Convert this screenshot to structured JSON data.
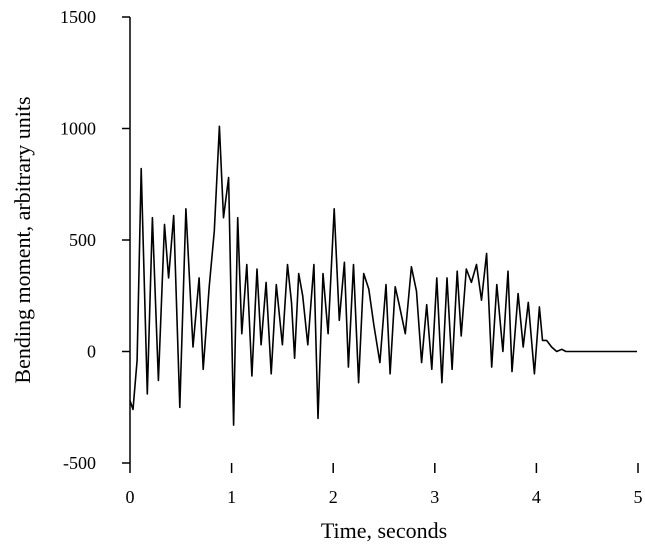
{
  "chart_data": {
    "type": "line",
    "title": "",
    "xlabel": "Time, seconds",
    "ylabel": "Bending moment, arbitrary units",
    "xlim": [
      0,
      5
    ],
    "ylim": [
      -500,
      1500
    ],
    "x_ticks": [
      0,
      1,
      2,
      3,
      4,
      5
    ],
    "x_tick_labels": [
      "0",
      "1",
      "2",
      "3",
      "4",
      "5"
    ],
    "y_ticks": [
      -500,
      0,
      500,
      1000,
      1500
    ],
    "y_tick_labels": [
      "-500",
      "0",
      "500",
      "1000",
      "1500"
    ],
    "grid": false,
    "legend": "none",
    "series": [
      {
        "x": [
          0,
          0.03,
          0.07,
          0.11,
          0.17,
          0.22,
          0.28,
          0.34,
          0.38,
          0.43,
          0.49,
          0.55,
          0.62,
          0.68,
          0.72,
          0.78,
          0.83,
          0.88,
          0.92,
          0.97,
          1.02,
          1.06,
          1.1,
          1.15,
          1.2,
          1.25,
          1.29,
          1.34,
          1.39,
          1.44,
          1.5,
          1.55,
          1.59,
          1.62,
          1.66,
          1.7,
          1.75,
          1.81,
          1.85,
          1.9,
          1.95,
          2.01,
          2.06,
          2.11,
          2.15,
          2.2,
          2.25,
          2.3,
          2.35,
          2.4,
          2.46,
          2.52,
          2.56,
          2.61,
          2.65,
          2.71,
          2.77,
          2.82,
          2.87,
          2.92,
          2.97,
          3.02,
          3.07,
          3.12,
          3.17,
          3.22,
          3.26,
          3.31,
          3.36,
          3.41,
          3.46,
          3.51,
          3.56,
          3.61,
          3.67,
          3.72,
          3.76,
          3.82,
          3.87,
          3.92,
          3.98,
          4.03,
          4.06,
          4.1,
          4.15,
          4.2,
          4.25,
          4.29,
          4.34,
          4.39,
          4.44,
          4.49,
          4.54,
          4.59,
          4.64,
          4.69,
          4.74,
          4.79,
          4.84,
          4.89,
          4.94,
          4.99
        ],
        "values": [
          -220,
          -260,
          -40,
          820,
          -190,
          600,
          -130,
          570,
          330,
          610,
          -250,
          640,
          20,
          330,
          -80,
          290,
          540,
          1010,
          600,
          780,
          -330,
          600,
          80,
          390,
          -110,
          370,
          30,
          310,
          -100,
          300,
          30,
          390,
          220,
          -30,
          350,
          250,
          30,
          390,
          -300,
          350,
          80,
          640,
          140,
          400,
          -70,
          390,
          -140,
          350,
          280,
          120,
          -50,
          300,
          -100,
          290,
          210,
          80,
          380,
          270,
          -50,
          210,
          -80,
          330,
          -140,
          330,
          -80,
          360,
          70,
          370,
          310,
          390,
          230,
          440,
          -70,
          300,
          0,
          360,
          -90,
          260,
          20,
          220,
          -100,
          200,
          50,
          50,
          20,
          0,
          10,
          0,
          0,
          0,
          0,
          0,
          0,
          0,
          0,
          0,
          0,
          0,
          0,
          0,
          0,
          0
        ]
      }
    ]
  }
}
